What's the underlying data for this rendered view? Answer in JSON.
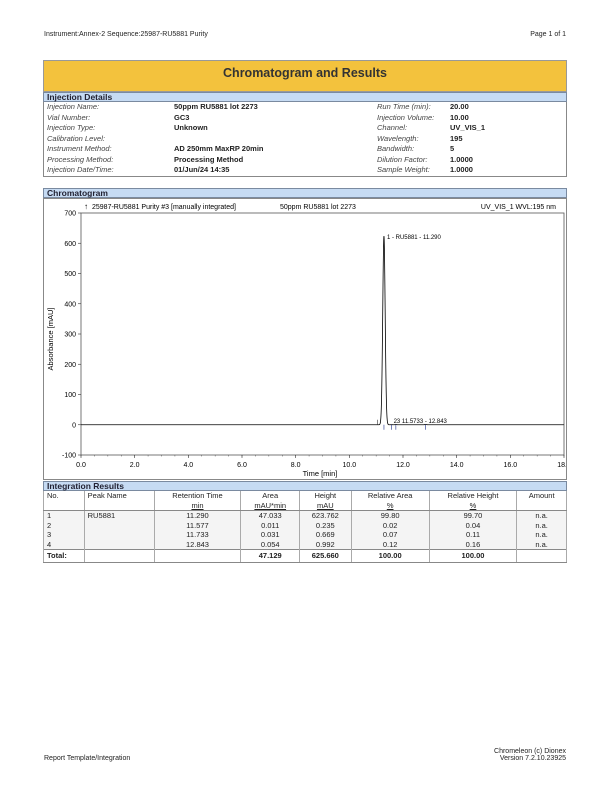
{
  "header": {
    "left": "Instrument:Annex-2   Sequence:25987-RU5881 Purity",
    "right": "Page 1 of 1"
  },
  "title": "Chromatogram and Results",
  "injection_details": {
    "heading": "Injection Details",
    "left": [
      {
        "label": "Injection Name:",
        "value": "50ppm RU5881 lot 2273"
      },
      {
        "label": "Vial Number:",
        "value": "GC3"
      },
      {
        "label": "Injection Type:",
        "value": "Unknown"
      },
      {
        "label": "Calibration Level:",
        "value": ""
      },
      {
        "label": "Instrument Method:",
        "value": "AD 250mm MaxRP 20min"
      },
      {
        "label": "Processing Method:",
        "value": "Processing Method"
      },
      {
        "label": "Injection Date/Time:",
        "value": "01/Jun/24 14:35"
      }
    ],
    "right": [
      {
        "label": "Run Time (min):",
        "value": "20.00"
      },
      {
        "label": "Injection Volume:",
        "value": "10.00"
      },
      {
        "label": "Channel:",
        "value": "UV_VIS_1"
      },
      {
        "label": "Wavelength:",
        "value": "195"
      },
      {
        "label": "Bandwidth:",
        "value": "5"
      },
      {
        "label": "Dilution Factor:",
        "value": "1.0000"
      },
      {
        "label": "Sample Weight:",
        "value": "1.0000"
      }
    ]
  },
  "chromatogram": {
    "heading": "Chromatogram",
    "trace_title": "25987-RU5881 Purity #3 [manually integrated]",
    "sample": "50ppm RU5881 lot 2273",
    "channel": "UV_VIS_1 WVL:195 nm",
    "peak_label": "1 - RU5881 - 11.290",
    "minor_label": "23 11.5733 - 12.843",
    "trace_color": "#000000",
    "marker_color": "#3a4a9a"
  },
  "chart_data": {
    "type": "line",
    "xlabel": "Time [min]",
    "ylabel": "Absorbance [mAU]",
    "xlim": [
      0,
      18
    ],
    "ylim": [
      -100,
      700
    ],
    "xticks": [
      "0.0",
      "2.0",
      "4.0",
      "6.0",
      "8.0",
      "10.0",
      "12.0",
      "14.0",
      "16.0",
      "18.0"
    ],
    "yticks": [
      "-100",
      "0",
      "100",
      "200",
      "300",
      "400",
      "500",
      "600",
      "700"
    ],
    "peaks": [
      {
        "rt": 11.29,
        "height": 623.762
      },
      {
        "rt": 11.577,
        "height": 0.235
      },
      {
        "rt": 11.733,
        "height": 0.669
      },
      {
        "rt": 12.843,
        "height": 0.992
      }
    ]
  },
  "integration": {
    "heading": "Integration Results",
    "columns": [
      [
        "No.",
        ""
      ],
      [
        "Peak Name",
        ""
      ],
      [
        "Retention Time",
        "min"
      ],
      [
        "Area",
        "mAU*min"
      ],
      [
        "Height",
        "mAU"
      ],
      [
        "Relative Area",
        "%"
      ],
      [
        "Relative Height",
        "%"
      ],
      [
        "Amount",
        ""
      ]
    ],
    "rows": [
      [
        "1",
        "RU5881",
        "11.290",
        "47.033",
        "623.762",
        "99.80",
        "99.70",
        "n.a."
      ],
      [
        "2",
        "",
        "11.577",
        "0.011",
        "0.235",
        "0.02",
        "0.04",
        "n.a."
      ],
      [
        "3",
        "",
        "11.733",
        "0.031",
        "0.669",
        "0.07",
        "0.11",
        "n.a."
      ],
      [
        "4",
        "",
        "12.843",
        "0.054",
        "0.992",
        "0.12",
        "0.16",
        "n.a."
      ]
    ],
    "total": [
      "Total:",
      "",
      "",
      "47.129",
      "625.660",
      "100.00",
      "100.00",
      ""
    ]
  },
  "footer": {
    "left": "Report Template/Integration",
    "right1": "Chromeleon (c) Dionex",
    "right2": "Version 7.2.10.23925"
  }
}
